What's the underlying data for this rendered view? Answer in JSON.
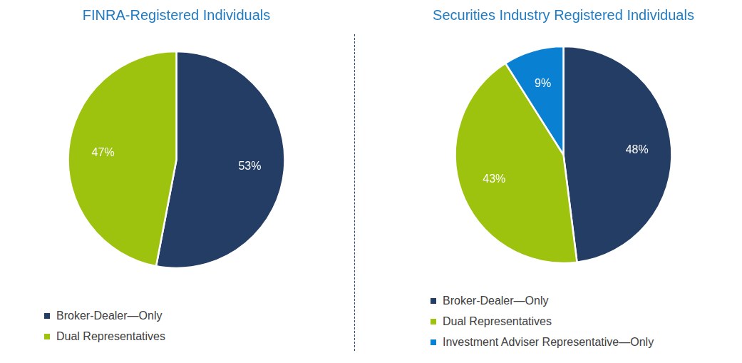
{
  "chart_data": [
    {
      "type": "pie",
      "title": "FINRA-Registered Individuals",
      "categories": [
        "Broker-Dealer—Only",
        "Dual Representatives"
      ],
      "values": [
        53,
        47
      ],
      "value_labels": [
        "53%",
        "47%"
      ],
      "colors": [
        "#233d64",
        "#9dc30e"
      ],
      "data_labels": true,
      "legend": "bottom left"
    },
    {
      "type": "pie",
      "title": "Securities Industry Registered Individuals",
      "categories": [
        "Broker-Dealer—Only",
        "Dual Representatives",
        "Investment Adviser Representative—Only"
      ],
      "values": [
        48,
        43,
        9
      ],
      "value_labels": [
        "48%",
        "43%",
        "9%"
      ],
      "colors": [
        "#233d64",
        "#9dc30e",
        "#0a80d2"
      ],
      "data_labels": true,
      "legend": "bottom left"
    }
  ]
}
